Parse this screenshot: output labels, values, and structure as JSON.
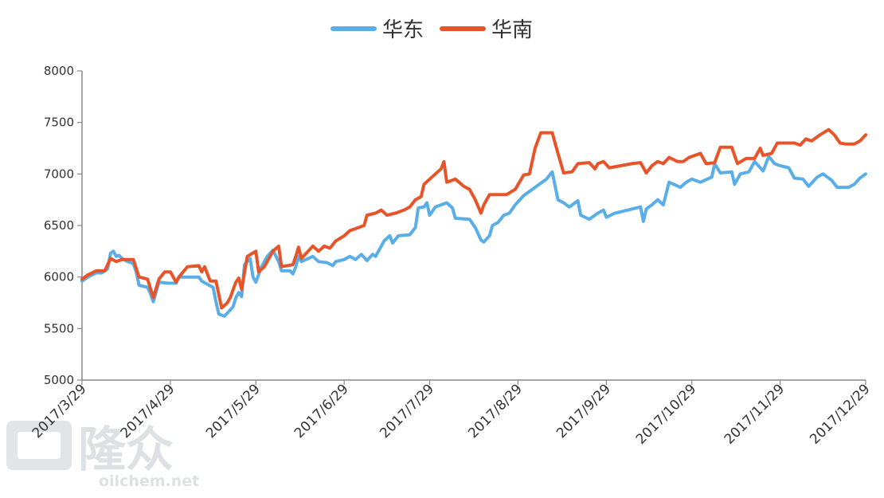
{
  "chart_data": {
    "type": "line",
    "title": "",
    "xlabel": "",
    "ylabel": "",
    "ylim": [
      5000,
      8000
    ],
    "y_ticks": [
      5000,
      5500,
      6000,
      6500,
      7000,
      7500,
      8000
    ],
    "x_range": [
      "2017-03-29",
      "2017-12-29"
    ],
    "x_tick_labels": [
      "2017/3/29",
      "2017/4/29",
      "2017/5/29",
      "2017/6/29",
      "2017/7/29",
      "2017/8/29",
      "2017/9/29",
      "2017/10/29",
      "2017/11/29",
      "2017/12/29"
    ],
    "x_tick_dates": [
      "2017-03-29",
      "2017-04-29",
      "2017-05-29",
      "2017-06-29",
      "2017-07-29",
      "2017-08-29",
      "2017-09-29",
      "2017-10-29",
      "2017-11-29",
      "2017-12-29"
    ],
    "grid": false,
    "legend_position": "top-center",
    "series": [
      {
        "name": "华东",
        "color": "#5aaee8",
        "points": [
          [
            "2017-03-29",
            5960
          ],
          [
            "2017-03-31",
            6000
          ],
          [
            "2017-04-03",
            6040
          ],
          [
            "2017-04-05",
            6040
          ],
          [
            "2017-04-07",
            6080
          ],
          [
            "2017-04-08",
            6230
          ],
          [
            "2017-04-09",
            6250
          ],
          [
            "2017-04-10",
            6200
          ],
          [
            "2017-04-11",
            6210
          ],
          [
            "2017-04-12",
            6180
          ],
          [
            "2017-04-14",
            6150
          ],
          [
            "2017-04-16",
            6130
          ],
          [
            "2017-04-17",
            6050
          ],
          [
            "2017-04-18",
            5920
          ],
          [
            "2017-04-21",
            5900
          ],
          [
            "2017-04-22",
            5840
          ],
          [
            "2017-04-23",
            5760
          ],
          [
            "2017-04-25",
            5950
          ],
          [
            "2017-04-28",
            5940
          ],
          [
            "2017-05-01",
            5940
          ],
          [
            "2017-05-02",
            6000
          ],
          [
            "2017-05-09",
            6000
          ],
          [
            "2017-05-10",
            5960
          ],
          [
            "2017-05-12",
            5930
          ],
          [
            "2017-05-14",
            5900
          ],
          [
            "2017-05-15",
            5760
          ],
          [
            "2017-05-16",
            5640
          ],
          [
            "2017-05-18",
            5620
          ],
          [
            "2017-05-21",
            5710
          ],
          [
            "2017-05-22",
            5800
          ],
          [
            "2017-05-23",
            5850
          ],
          [
            "2017-05-24",
            5810
          ],
          [
            "2017-05-25",
            6120
          ],
          [
            "2017-05-27",
            6180
          ],
          [
            "2017-05-28",
            6000
          ],
          [
            "2017-05-29",
            5950
          ],
          [
            "2017-05-31",
            6100
          ],
          [
            "2017-06-02",
            6200
          ],
          [
            "2017-06-04",
            6260
          ],
          [
            "2017-06-06",
            6150
          ],
          [
            "2017-06-07",
            6060
          ],
          [
            "2017-06-10",
            6060
          ],
          [
            "2017-06-11",
            6030
          ],
          [
            "2017-06-12",
            6100
          ],
          [
            "2017-06-13",
            6200
          ],
          [
            "2017-06-14",
            6150
          ],
          [
            "2017-06-18",
            6200
          ],
          [
            "2017-06-20",
            6150
          ],
          [
            "2017-06-23",
            6140
          ],
          [
            "2017-06-25",
            6110
          ],
          [
            "2017-06-26",
            6150
          ],
          [
            "2017-06-29",
            6170
          ],
          [
            "2017-07-01",
            6200
          ],
          [
            "2017-07-03",
            6170
          ],
          [
            "2017-07-05",
            6220
          ],
          [
            "2017-07-07",
            6160
          ],
          [
            "2017-07-09",
            6220
          ],
          [
            "2017-07-10",
            6200
          ],
          [
            "2017-07-13",
            6350
          ],
          [
            "2017-07-15",
            6400
          ],
          [
            "2017-07-16",
            6330
          ],
          [
            "2017-07-18",
            6400
          ],
          [
            "2017-07-22",
            6410
          ],
          [
            "2017-07-24",
            6480
          ],
          [
            "2017-07-25",
            6670
          ],
          [
            "2017-07-27",
            6680
          ],
          [
            "2017-07-28",
            6720
          ],
          [
            "2017-07-29",
            6600
          ],
          [
            "2017-07-31",
            6680
          ],
          [
            "2017-08-04",
            6720
          ],
          [
            "2017-08-06",
            6670
          ],
          [
            "2017-08-07",
            6570
          ],
          [
            "2017-08-12",
            6560
          ],
          [
            "2017-08-14",
            6480
          ],
          [
            "2017-08-16",
            6360
          ],
          [
            "2017-08-17",
            6340
          ],
          [
            "2017-08-19",
            6400
          ],
          [
            "2017-08-20",
            6500
          ],
          [
            "2017-08-22",
            6530
          ],
          [
            "2017-08-24",
            6600
          ],
          [
            "2017-08-26",
            6620
          ],
          [
            "2017-08-28",
            6700
          ],
          [
            "2017-08-31",
            6790
          ],
          [
            "2017-09-02",
            6830
          ],
          [
            "2017-09-04",
            6870
          ],
          [
            "2017-09-08",
            6950
          ],
          [
            "2017-09-10",
            7020
          ],
          [
            "2017-09-12",
            6750
          ],
          [
            "2017-09-14",
            6720
          ],
          [
            "2017-09-16",
            6680
          ],
          [
            "2017-09-19",
            6740
          ],
          [
            "2017-09-20",
            6600
          ],
          [
            "2017-09-23",
            6560
          ],
          [
            "2017-09-26",
            6620
          ],
          [
            "2017-09-28",
            6650
          ],
          [
            "2017-09-29",
            6580
          ],
          [
            "2017-10-02",
            6620
          ],
          [
            "2017-10-05",
            6640
          ],
          [
            "2017-10-11",
            6680
          ],
          [
            "2017-10-12",
            6540
          ],
          [
            "2017-10-13",
            6660
          ],
          [
            "2017-10-15",
            6700
          ],
          [
            "2017-10-17",
            6750
          ],
          [
            "2017-10-19",
            6700
          ],
          [
            "2017-10-21",
            6920
          ],
          [
            "2017-10-25",
            6870
          ],
          [
            "2017-10-27",
            6920
          ],
          [
            "2017-10-29",
            6950
          ],
          [
            "2017-11-01",
            6920
          ],
          [
            "2017-11-05",
            6970
          ],
          [
            "2017-11-06",
            7100
          ],
          [
            "2017-11-08",
            7010
          ],
          [
            "2017-11-12",
            7020
          ],
          [
            "2017-11-13",
            6900
          ],
          [
            "2017-11-15",
            7000
          ],
          [
            "2017-11-18",
            7020
          ],
          [
            "2017-11-20",
            7120
          ],
          [
            "2017-11-23",
            7030
          ],
          [
            "2017-11-25",
            7170
          ],
          [
            "2017-11-27",
            7100
          ],
          [
            "2017-11-29",
            7080
          ],
          [
            "2017-12-02",
            7060
          ],
          [
            "2017-12-04",
            6960
          ],
          [
            "2017-12-07",
            6950
          ],
          [
            "2017-12-09",
            6880
          ],
          [
            "2017-12-12",
            6970
          ],
          [
            "2017-12-14",
            7000
          ],
          [
            "2017-12-17",
            6940
          ],
          [
            "2017-12-19",
            6870
          ],
          [
            "2017-12-23",
            6870
          ],
          [
            "2017-12-25",
            6900
          ],
          [
            "2017-12-27",
            6960
          ],
          [
            "2017-12-29",
            7000
          ]
        ]
      },
      {
        "name": "华南",
        "color": "#e8542a",
        "points": [
          [
            "2017-03-29",
            5980
          ],
          [
            "2017-03-31",
            6020
          ],
          [
            "2017-04-03",
            6060
          ],
          [
            "2017-04-06",
            6060
          ],
          [
            "2017-04-08",
            6180
          ],
          [
            "2017-04-10",
            6150
          ],
          [
            "2017-04-12",
            6170
          ],
          [
            "2017-04-14",
            6170
          ],
          [
            "2017-04-16",
            6170
          ],
          [
            "2017-04-18",
            6000
          ],
          [
            "2017-04-21",
            5980
          ],
          [
            "2017-04-23",
            5800
          ],
          [
            "2017-04-25",
            5980
          ],
          [
            "2017-04-27",
            6050
          ],
          [
            "2017-04-29",
            6050
          ],
          [
            "2017-05-01",
            5950
          ],
          [
            "2017-05-02",
            6000
          ],
          [
            "2017-05-05",
            6100
          ],
          [
            "2017-05-09",
            6110
          ],
          [
            "2017-05-10",
            6050
          ],
          [
            "2017-05-11",
            6100
          ],
          [
            "2017-05-13",
            5960
          ],
          [
            "2017-05-15",
            5960
          ],
          [
            "2017-05-17",
            5700
          ],
          [
            "2017-05-19",
            5750
          ],
          [
            "2017-05-20",
            5800
          ],
          [
            "2017-05-22",
            5950
          ],
          [
            "2017-05-23",
            5990
          ],
          [
            "2017-05-24",
            5880
          ],
          [
            "2017-05-26",
            6200
          ],
          [
            "2017-05-29",
            6250
          ],
          [
            "2017-05-30",
            6050
          ],
          [
            "2017-06-01",
            6100
          ],
          [
            "2017-06-04",
            6250
          ],
          [
            "2017-06-06",
            6300
          ],
          [
            "2017-06-07",
            6100
          ],
          [
            "2017-06-11",
            6120
          ],
          [
            "2017-06-12",
            6200
          ],
          [
            "2017-06-13",
            6290
          ],
          [
            "2017-06-14",
            6180
          ],
          [
            "2017-06-18",
            6300
          ],
          [
            "2017-06-20",
            6250
          ],
          [
            "2017-06-22",
            6300
          ],
          [
            "2017-06-24",
            6280
          ],
          [
            "2017-06-26",
            6350
          ],
          [
            "2017-06-29",
            6400
          ],
          [
            "2017-07-01",
            6450
          ],
          [
            "2017-07-04",
            6480
          ],
          [
            "2017-07-06",
            6500
          ],
          [
            "2017-07-07",
            6600
          ],
          [
            "2017-07-10",
            6620
          ],
          [
            "2017-07-12",
            6650
          ],
          [
            "2017-07-14",
            6600
          ],
          [
            "2017-07-17",
            6620
          ],
          [
            "2017-07-20",
            6650
          ],
          [
            "2017-07-22",
            6680
          ],
          [
            "2017-07-24",
            6750
          ],
          [
            "2017-07-26",
            6780
          ],
          [
            "2017-07-27",
            6900
          ],
          [
            "2017-07-29",
            6950
          ],
          [
            "2017-07-31",
            7000
          ],
          [
            "2017-08-02",
            7050
          ],
          [
            "2017-08-03",
            7120
          ],
          [
            "2017-08-04",
            6920
          ],
          [
            "2017-08-07",
            6950
          ],
          [
            "2017-08-10",
            6880
          ],
          [
            "2017-08-12",
            6850
          ],
          [
            "2017-08-14",
            6750
          ],
          [
            "2017-08-16",
            6620
          ],
          [
            "2017-08-17",
            6700
          ],
          [
            "2017-08-19",
            6800
          ],
          [
            "2017-08-22",
            6800
          ],
          [
            "2017-08-25",
            6800
          ],
          [
            "2017-08-28",
            6850
          ],
          [
            "2017-08-31",
            6990
          ],
          [
            "2017-09-02",
            7000
          ],
          [
            "2017-09-04",
            7250
          ],
          [
            "2017-09-06",
            7400
          ],
          [
            "2017-09-10",
            7400
          ],
          [
            "2017-09-12",
            7200
          ],
          [
            "2017-09-14",
            7010
          ],
          [
            "2017-09-17",
            7020
          ],
          [
            "2017-09-19",
            7100
          ],
          [
            "2017-09-23",
            7110
          ],
          [
            "2017-09-25",
            7050
          ],
          [
            "2017-09-26",
            7100
          ],
          [
            "2017-09-28",
            7120
          ],
          [
            "2017-09-30",
            7060
          ],
          [
            "2017-10-04",
            7080
          ],
          [
            "2017-10-08",
            7100
          ],
          [
            "2017-10-11",
            7110
          ],
          [
            "2017-10-13",
            7010
          ],
          [
            "2017-10-15",
            7080
          ],
          [
            "2017-10-17",
            7120
          ],
          [
            "2017-10-19",
            7100
          ],
          [
            "2017-10-21",
            7160
          ],
          [
            "2017-10-24",
            7120
          ],
          [
            "2017-10-26",
            7120
          ],
          [
            "2017-10-28",
            7160
          ],
          [
            "2017-11-01",
            7200
          ],
          [
            "2017-11-03",
            7100
          ],
          [
            "2017-11-06",
            7110
          ],
          [
            "2017-11-08",
            7260
          ],
          [
            "2017-11-12",
            7260
          ],
          [
            "2017-11-14",
            7100
          ],
          [
            "2017-11-17",
            7150
          ],
          [
            "2017-11-20",
            7150
          ],
          [
            "2017-11-22",
            7250
          ],
          [
            "2017-11-23",
            7180
          ],
          [
            "2017-11-26",
            7200
          ],
          [
            "2017-11-28",
            7300
          ],
          [
            "2017-12-01",
            7300
          ],
          [
            "2017-12-04",
            7300
          ],
          [
            "2017-12-06",
            7280
          ],
          [
            "2017-12-08",
            7340
          ],
          [
            "2017-12-10",
            7320
          ],
          [
            "2017-12-13",
            7380
          ],
          [
            "2017-12-16",
            7430
          ],
          [
            "2017-12-18",
            7380
          ],
          [
            "2017-12-20",
            7300
          ],
          [
            "2017-12-22",
            7290
          ],
          [
            "2017-12-25",
            7290
          ],
          [
            "2017-12-27",
            7320
          ],
          [
            "2017-12-29",
            7380
          ]
        ]
      }
    ]
  },
  "watermark": {
    "brand_text": "隆众",
    "site_text": "oilchem.net"
  }
}
